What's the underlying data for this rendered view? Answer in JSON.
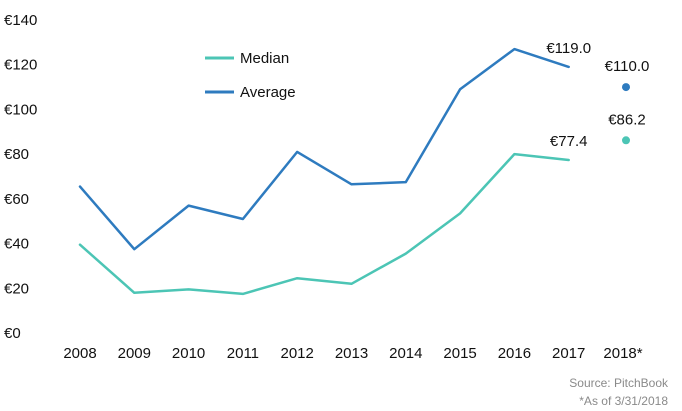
{
  "chart_data": {
    "type": "line",
    "categories": [
      "2008",
      "2009",
      "2010",
      "2011",
      "2012",
      "2013",
      "2014",
      "2015",
      "2016",
      "2017",
      "2018*"
    ],
    "ylim": [
      0,
      140
    ],
    "yticks": [
      0,
      20,
      40,
      60,
      80,
      100,
      120,
      140
    ],
    "ytick_labels": [
      "€0",
      "€20",
      "€40",
      "€60",
      "€80",
      "€100",
      "€120",
      "€140"
    ],
    "grid": false,
    "legend_position": "top-left",
    "series": [
      {
        "name": "Median",
        "color": "#4cc5b5",
        "values": [
          39.5,
          18.0,
          19.5,
          17.5,
          24.5,
          22.0,
          35.5,
          53.5,
          80.0,
          77.4,
          null
        ],
        "point": {
          "category": "2018*",
          "value": 86.2,
          "label": "€86.2"
        },
        "end_label": "€77.4"
      },
      {
        "name": "Average",
        "color": "#2e7bbf",
        "values": [
          65.5,
          37.5,
          57.0,
          51.0,
          81.0,
          66.5,
          67.5,
          109.0,
          127.0,
          119.0,
          null
        ],
        "point": {
          "category": "2018*",
          "value": 110.0,
          "label": "€110.0"
        },
        "end_label": "€119.0"
      }
    ]
  },
  "notes": {
    "source": "Source: PitchBook",
    "asof": "*As of 3/31/2018"
  }
}
